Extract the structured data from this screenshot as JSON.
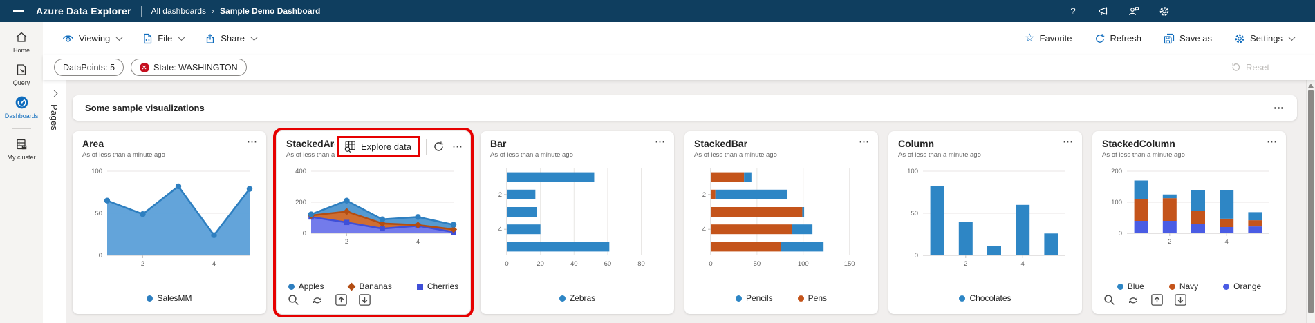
{
  "topnav": {
    "app_title": "Azure Data Explorer",
    "breadcrumb_root": "All dashboards",
    "breadcrumb_current": "Sample Demo Dashboard",
    "help_glyph": "?"
  },
  "commandbar": {
    "viewing": "Viewing",
    "file": "File",
    "share": "Share",
    "favorite": "Favorite",
    "refresh": "Refresh",
    "save_as": "Save as",
    "settings": "Settings",
    "favorite_glyph": "☆"
  },
  "filters": {
    "datapoints_pill": "DataPoints: 5",
    "state_pill": "State: WASHINGTON",
    "reset": "Reset"
  },
  "sidebar": {
    "home": "Home",
    "query": "Query",
    "dashboards": "Dashboards",
    "my_cluster": "My cluster"
  },
  "pages_panel": {
    "label": "Pages"
  },
  "section": {
    "title": "Some sample visualizations",
    "menu_glyph": "⋯"
  },
  "tiles": [
    {
      "title": "Area",
      "subtitle": "As of less than a minute ago",
      "chart_data": {
        "type": "area",
        "orientation": "v",
        "x": [
          1,
          2,
          3,
          4,
          5
        ],
        "xticks": [
          2,
          4
        ],
        "ymax": 100,
        "yticks": [
          0,
          50,
          100
        ],
        "series": [
          {
            "name": "SalesMM",
            "color": "#2e7fc0",
            "fill": "#5b9fd8",
            "marker": "circle",
            "values": [
              65,
              49,
              82,
              24,
              79
            ]
          }
        ],
        "legend": [
          0
        ]
      }
    },
    {
      "title": "StackedArea",
      "subtitle": "As of less than a minute ago",
      "highlighted": true,
      "toolbar": {
        "explore_label": "Explore data"
      },
      "footer_icons": true,
      "chart_data": {
        "type": "area",
        "orientation": "v",
        "stacked": true,
        "x": [
          1,
          2,
          3,
          4,
          5
        ],
        "xticks": [
          2,
          4
        ],
        "ymax": 400,
        "yticks": [
          0,
          200,
          400
        ],
        "series": [
          {
            "name": "Cherries",
            "color": "#3f4fd8",
            "fill": "#6b74ea",
            "marker": "square",
            "values": [
              105,
              70,
              30,
              48,
              8
            ]
          },
          {
            "name": "Bananas",
            "color": "#b34d12",
            "fill": "#cc6626",
            "marker": "diamond",
            "values": [
              10,
              70,
              33,
              5,
              17
            ]
          },
          {
            "name": "Apples",
            "color": "#2e7fc0",
            "fill": "#4d95cf",
            "marker": "circle",
            "values": [
              7,
              70,
              27,
              52,
              30
            ]
          }
        ],
        "legend": [
          2,
          1,
          0
        ]
      }
    },
    {
      "title": "Bar",
      "subtitle": "As of less than a minute ago",
      "chart_data": {
        "type": "bar",
        "orientation": "h",
        "categories": [
          1,
          2,
          3,
          4,
          5
        ],
        "ycats": [
          2,
          4
        ],
        "xmax": 88,
        "xticks": [
          0,
          20,
          40,
          60,
          80
        ],
        "series": [
          {
            "name": "Zebras",
            "color": "#2e86c5",
            "marker": "circle",
            "values": [
              52,
              17,
              18,
              20,
              61
            ]
          }
        ],
        "legend": [
          0
        ]
      }
    },
    {
      "title": "StackedBar",
      "subtitle": "As of less than a minute ago",
      "chart_data": {
        "type": "bar",
        "orientation": "h",
        "stacked": true,
        "categories": [
          1,
          2,
          3,
          4,
          5
        ],
        "ycats": [
          2,
          4
        ],
        "xmax": 160,
        "xticks": [
          0,
          50,
          100,
          150
        ],
        "series": [
          {
            "name": "Pens",
            "color": "#c4541b",
            "marker": "circle",
            "values": [
              36,
              5,
              99,
              88,
              76
            ]
          },
          {
            "name": "Pencils",
            "color": "#2e86c5",
            "marker": "circle",
            "values": [
              8,
              78,
              2,
              22,
              46
            ]
          }
        ],
        "legend": [
          1,
          0
        ]
      }
    },
    {
      "title": "Column",
      "subtitle": "As of less than a minute ago",
      "chart_data": {
        "type": "column",
        "orientation": "v",
        "x": [
          1,
          2,
          3,
          4,
          5
        ],
        "xticks": [
          2,
          4
        ],
        "ymax": 100,
        "yticks": [
          0,
          50,
          100
        ],
        "series": [
          {
            "name": "Chocolates",
            "color": "#2e86c5",
            "marker": "circle",
            "values": [
              82,
              40,
              11,
              60,
              26
            ]
          }
        ],
        "legend": [
          0
        ]
      }
    },
    {
      "title": "StackedColumn",
      "subtitle": "As of less than a minute ago",
      "footer_icons": true,
      "chart_data": {
        "type": "column",
        "orientation": "v",
        "stacked": true,
        "x": [
          1,
          2,
          3,
          4,
          5
        ],
        "xticks": [
          2,
          4
        ],
        "ymax": 200,
        "yticks": [
          0,
          100,
          200
        ],
        "series": [
          {
            "name": "Orange",
            "color": "#4a5ce4",
            "marker": "circle",
            "values": [
              40,
              40,
              30,
              20,
              22
            ]
          },
          {
            "name": "Navy",
            "color": "#c4541b",
            "marker": "circle",
            "values": [
              70,
              73,
              42,
              27,
              20
            ]
          },
          {
            "name": "Blue",
            "color": "#2e86c5",
            "marker": "circle",
            "values": [
              60,
              12,
              68,
              93,
              26
            ]
          }
        ],
        "legend": [
          2,
          1,
          0
        ]
      }
    }
  ],
  "colors": {
    "topnav_bg": "#0f3e5f",
    "accent_blue": "#0f6cbd",
    "highlight_red": "#e60000",
    "pill_remove_red": "#c50f1f"
  }
}
